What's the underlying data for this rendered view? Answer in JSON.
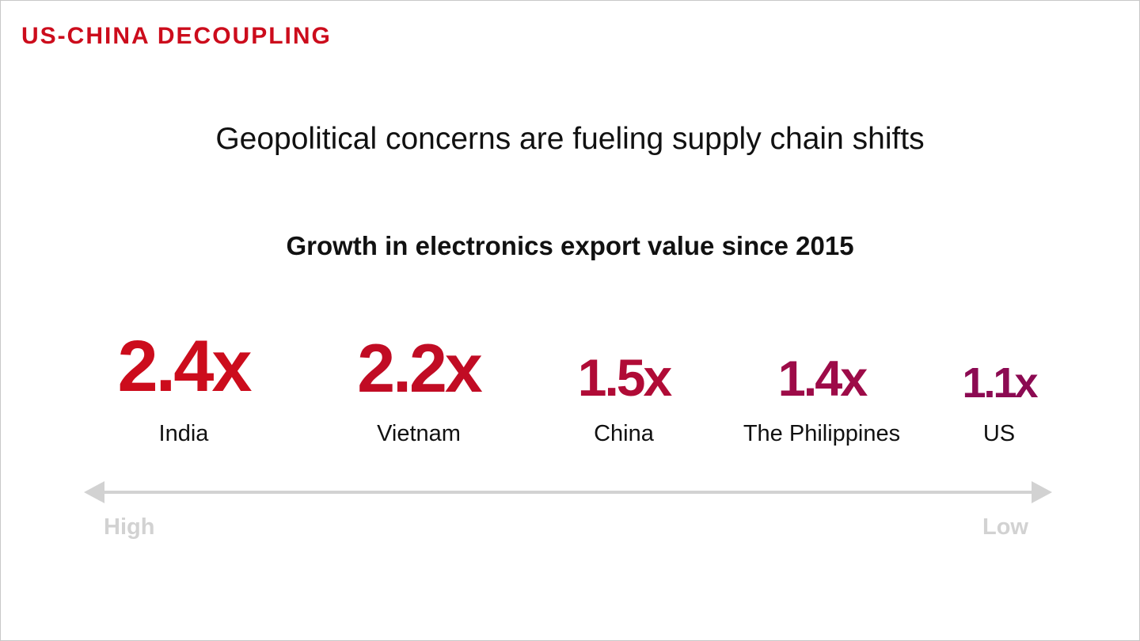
{
  "kicker": "US-CHINA DECOUPLING",
  "headline": "Geopolitical concerns are fueling supply chain shifts",
  "chart_data": {
    "type": "table",
    "title": "Growth in electronics export value since 2015",
    "categories": [
      "India",
      "Vietnam",
      "China",
      "The Philippines",
      "US"
    ],
    "values": [
      2.4,
      2.2,
      1.5,
      1.4,
      1.1
    ],
    "value_labels": [
      "2.4x",
      "2.2x",
      "1.5x",
      "1.4x",
      "1.1x"
    ],
    "colors": [
      "#cc0c1c",
      "#c10c24",
      "#b00b36",
      "#9d0b48",
      "#8c0a52"
    ],
    "scale_labels": {
      "left": "High",
      "right": "Low"
    },
    "grid": false
  }
}
